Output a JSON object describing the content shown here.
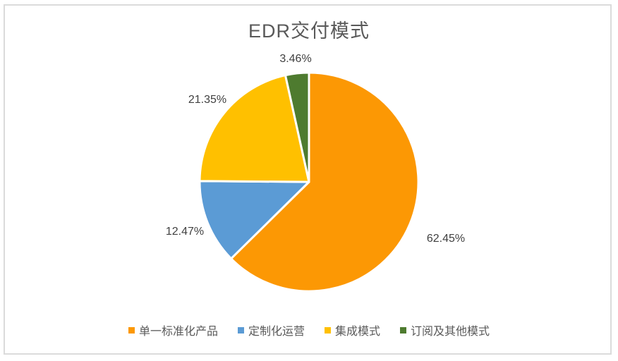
{
  "chart_data": {
    "type": "pie",
    "title": "EDR交付模式",
    "series": [
      {
        "name": "单一标准化产品",
        "value": 62.45,
        "label": "62.45%",
        "color": "#FC9804"
      },
      {
        "name": "定制化运营",
        "value": 12.47,
        "label": "12.47%",
        "color": "#5B9BD5"
      },
      {
        "name": "集成模式",
        "value": 21.35,
        "label": "21.35%",
        "color": "#FFC000"
      },
      {
        "name": "订阅及其他模式",
        "value": 3.46,
        "label": "3.46%",
        "color": "#4E7B2F"
      }
    ],
    "start_angle_deg": 0,
    "direction": "clockwise",
    "slice_border_color": "#FFFFFF",
    "label_position": "outside",
    "legend_position": "bottom",
    "title_color": "#595959",
    "label_text_color": "#404040",
    "legend_text_color": "#595959",
    "frame_border_color": "#DBDBDB"
  }
}
